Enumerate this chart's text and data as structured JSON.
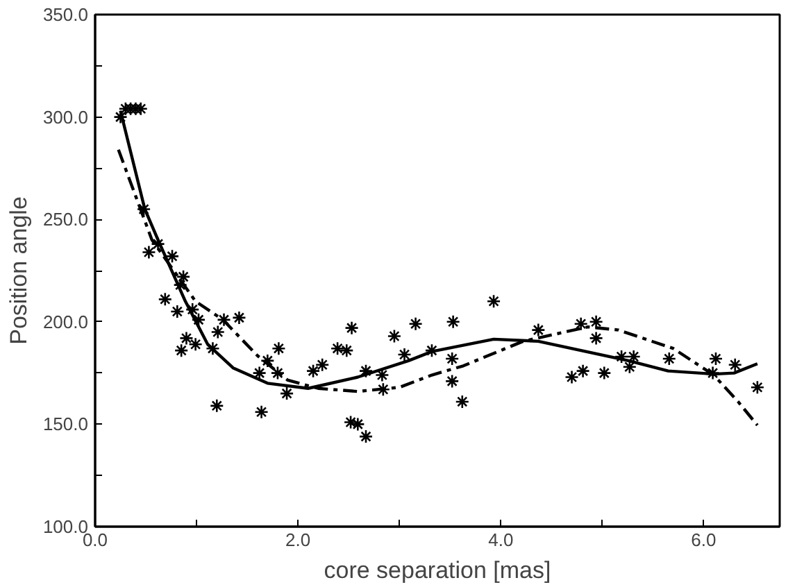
{
  "chart_data": {
    "type": "scatter",
    "xlabel": "core separation [mas]",
    "ylabel": "Position angle",
    "xlim": [
      0,
      6.75
    ],
    "ylim": [
      100,
      350
    ],
    "xticks": [
      {
        "value": 0,
        "label": "0.0"
      },
      {
        "value": 1,
        "label": null
      },
      {
        "value": 2,
        "label": "2.0"
      },
      {
        "value": 3,
        "label": null
      },
      {
        "value": 4,
        "label": "4.0"
      },
      {
        "value": 5,
        "label": null
      },
      {
        "value": 6,
        "label": "6.0"
      }
    ],
    "yticks": [
      {
        "value": 100,
        "label": "100.0"
      },
      {
        "value": 125,
        "label": null
      },
      {
        "value": 150,
        "label": "150.0"
      },
      {
        "value": 175,
        "label": null
      },
      {
        "value": 200,
        "label": "200.0"
      },
      {
        "value": 225,
        "label": null
      },
      {
        "value": 250,
        "label": "250.0"
      },
      {
        "value": 275,
        "label": null
      },
      {
        "value": 300,
        "label": "300.0"
      },
      {
        "value": 325,
        "label": null
      },
      {
        "value": 350,
        "label": "350.0"
      }
    ],
    "grid": false,
    "series": [
      {
        "marker": "cross",
        "color": "#000000",
        "x": [
          0.25,
          0.3,
          0.35,
          0.4,
          0.45,
          0.48,
          0.53,
          0.62,
          0.69,
          0.76,
          0.84,
          0.87,
          0.81,
          0.96,
          1.02,
          0.85,
          0.9,
          0.99,
          1.16,
          1.21,
          1.27,
          1.42,
          1.2,
          1.62,
          1.7,
          1.81,
          1.8,
          1.89,
          1.64,
          2.15,
          2.24,
          2.39,
          2.48,
          2.53,
          2.52,
          2.59,
          2.67,
          2.67,
          2.83,
          2.84,
          2.95,
          3.05,
          3.16,
          3.32,
          3.53,
          3.93,
          3.52,
          3.52,
          3.62,
          4.37,
          4.79,
          4.94,
          4.94,
          4.7,
          4.81,
          5.02,
          5.19,
          5.31,
          5.27,
          5.66,
          6.12,
          6.09,
          6.31,
          6.53
        ],
        "values": [
          300,
          304,
          304,
          304,
          304,
          255,
          234,
          238,
          211,
          232,
          218,
          222,
          205,
          206,
          201,
          186,
          192,
          189,
          187,
          195,
          201,
          202,
          159,
          175,
          181,
          187,
          175,
          165,
          156,
          176,
          179,
          187,
          186,
          197,
          151,
          150,
          144,
          176,
          174,
          167,
          193,
          184,
          199,
          186,
          200,
          210,
          182,
          171,
          161,
          196,
          199,
          200,
          192,
          173,
          176,
          175,
          183,
          183,
          178,
          182,
          182,
          175,
          179,
          168
        ]
      },
      {
        "type": "line",
        "line_style": "solid",
        "marker": "none",
        "color": "#000000",
        "x": [
          0.25,
          0.49,
          0.62,
          0.89,
          1.11,
          1.36,
          1.7,
          2.1,
          2.59,
          3.09,
          3.32,
          3.93,
          4.37,
          5.26,
          5.65,
          6.1,
          6.3,
          6.53
        ],
        "values": [
          303,
          255,
          240,
          210,
          189,
          177.5,
          170,
          167.5,
          173,
          181,
          185.5,
          191.5,
          190.5,
          181,
          176,
          174.5,
          175,
          179.5
        ]
      },
      {
        "type": "line",
        "line_style": "dashed",
        "marker": "none",
        "color": "#000000",
        "x": [
          0.23,
          0.56,
          0.99,
          1.26,
          1.6,
          1.9,
          2.2,
          2.59,
          3.0,
          3.32,
          3.63,
          4.22,
          4.86,
          5.16,
          5.7,
          6.1,
          6.34,
          6.53
        ],
        "values": [
          284,
          240,
          210,
          201,
          183.5,
          171.5,
          167.5,
          166,
          168,
          174,
          178.5,
          190.5,
          197.5,
          196,
          187,
          174,
          161,
          149.5
        ]
      }
    ]
  }
}
